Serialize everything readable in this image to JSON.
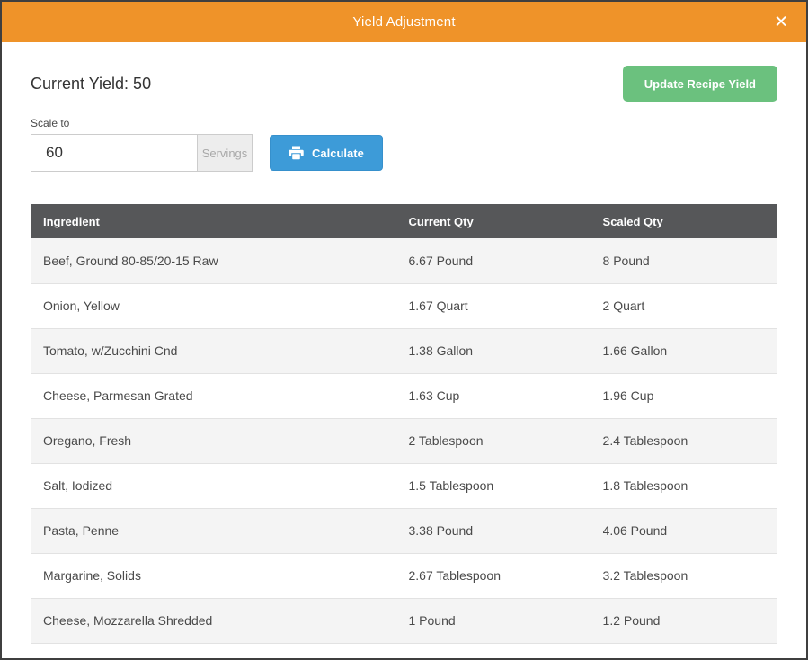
{
  "modal": {
    "title": "Yield Adjustment",
    "close_icon": "✕"
  },
  "yield": {
    "current_label": "Current Yield: 50",
    "update_button": "Update Recipe Yield",
    "scale_label": "Scale to",
    "scale_value": "60",
    "unit_addon": "Servings",
    "calculate_button": "Calculate"
  },
  "table": {
    "columns": [
      "Ingredient",
      "Current Qty",
      "Scaled Qty"
    ],
    "rows": [
      {
        "ingredient": "Beef, Ground 80-85/20-15 Raw",
        "current": "6.67 Pound",
        "scaled": "8 Pound"
      },
      {
        "ingredient": "Onion, Yellow",
        "current": "1.67 Quart",
        "scaled": "2 Quart"
      },
      {
        "ingredient": "Tomato, w/Zucchini Cnd",
        "current": "1.38 Gallon",
        "scaled": "1.66 Gallon"
      },
      {
        "ingredient": "Cheese, Parmesan Grated",
        "current": "1.63 Cup",
        "scaled": "1.96 Cup"
      },
      {
        "ingredient": "Oregano, Fresh",
        "current": "2 Tablespoon",
        "scaled": "2.4 Tablespoon"
      },
      {
        "ingredient": "Salt, Iodized",
        "current": "1.5 Tablespoon",
        "scaled": "1.8 Tablespoon"
      },
      {
        "ingredient": "Pasta, Penne",
        "current": "3.38 Pound",
        "scaled": "4.06 Pound"
      },
      {
        "ingredient": "Margarine, Solids",
        "current": "2.67 Tablespoon",
        "scaled": "3.2 Tablespoon"
      },
      {
        "ingredient": "Cheese, Mozzarella Shredded",
        "current": "1 Pound",
        "scaled": "1.2 Pound"
      }
    ]
  },
  "colors": {
    "header_orange": "#EF9329",
    "update_button_green": "#6BC17E",
    "calculate_button_blue": "#3D9BD8",
    "table_header_gray": "#565759",
    "row_stripe": "#f4f4f4"
  }
}
